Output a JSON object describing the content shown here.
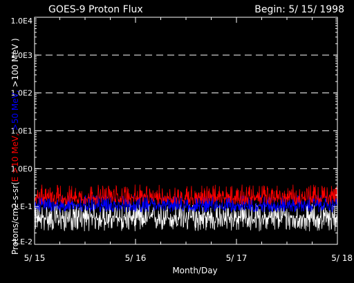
{
  "chart_data": {
    "type": "line",
    "title": "GOES-9 Proton Flux",
    "subtitle": "Begin: 5/ 15/ 1998",
    "xlabel": "Month/Day",
    "ylabel_parts": [
      {
        "text": "Protons/cm2-s-sr(",
        "color": "#ffffff"
      },
      {
        "text": "E >10 MeV, ",
        "color": "#ff0000"
      },
      {
        "text": ">50 MeV, ",
        "color": "#0000ff"
      },
      {
        "text": ">100 MeV )",
        "color": "#ffffff"
      }
    ],
    "yscale": "log",
    "ylim": [
      0.01,
      10000
    ],
    "xlim": [
      0,
      3
    ],
    "x_ticks": [
      {
        "value": 0,
        "label": "5/ 15"
      },
      {
        "value": 1,
        "label": "5/ 16"
      },
      {
        "value": 2,
        "label": "5/ 17"
      },
      {
        "value": 3,
        "label": "5/ 18"
      }
    ],
    "y_ticks": [
      {
        "value": 0.01,
        "label": "1.E-2"
      },
      {
        "value": 0.1,
        "label": "1.E-1"
      },
      {
        "value": 1,
        "label": "1.0E0"
      },
      {
        "value": 10,
        "label": "1.0E1"
      },
      {
        "value": 100,
        "label": "1.0E2"
      },
      {
        "value": 1000,
        "label": "1.0E3"
      },
      {
        "value": 10000,
        "label": "1.0E4"
      }
    ],
    "gridlines_y": [
      1,
      10,
      100,
      1000
    ],
    "series": [
      {
        "name": ">10 MeV",
        "color": "#ff0000",
        "base": 0.17,
        "spread_low": 0.11,
        "spread_high": 0.38
      },
      {
        "name": ">50 MeV",
        "color": "#0000ff",
        "base": 0.105,
        "spread_low": 0.07,
        "spread_high": 0.2
      },
      {
        "name": ">100 MeV",
        "color": "#ffffff",
        "base": 0.05,
        "spread_low": 0.022,
        "spread_high": 0.12
      }
    ]
  }
}
